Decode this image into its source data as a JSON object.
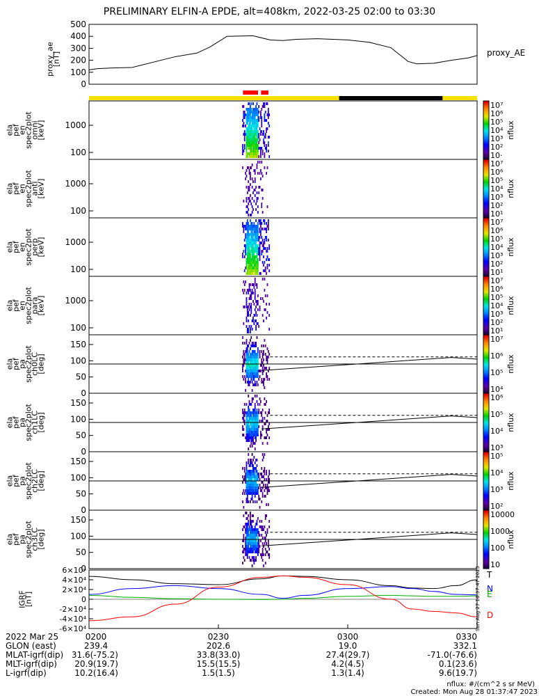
{
  "title": "PRELIMINARY ELFIN-A EPDE, alt=408km, 2022-03-25 02:00 to 03:30",
  "chart_data": [
    {
      "type": "line",
      "name": "proxy_ae",
      "ylabel_lines": [
        "proxy_ae",
        "[nT]"
      ],
      "legend": "proxy_AE",
      "ylim": [
        0,
        500
      ],
      "yticks": [
        "0",
        "100",
        "200",
        "300",
        "400",
        "500"
      ],
      "x_minutes": [
        0,
        2,
        5,
        10,
        20,
        25,
        28,
        32,
        38,
        42,
        45,
        48,
        53,
        60,
        65,
        70,
        74,
        76,
        80,
        84,
        88,
        90
      ],
      "values": [
        120,
        130,
        135,
        140,
        230,
        260,
        310,
        400,
        405,
        370,
        365,
        375,
        380,
        370,
        350,
        305,
        190,
        170,
        175,
        200,
        220,
        240
      ]
    },
    {
      "type": "bar",
      "name": "data-quality-bar",
      "segments": [
        {
          "from_min": 0,
          "to_min": 58,
          "color": "#f5e000"
        },
        {
          "from_min": 58,
          "to_min": 82,
          "color": "#000000"
        },
        {
          "from_min": 82,
          "to_min": 90,
          "color": "#f5e000"
        }
      ],
      "markers": [
        {
          "from_min": 35.7,
          "to_min": 39.2,
          "color": "#ff0000"
        },
        {
          "from_min": 39.9,
          "to_min": 41.6,
          "color": "#ff0000"
        }
      ]
    },
    {
      "type": "heatmap",
      "name": "spec2plot-omni",
      "ylabel_lines": [
        "ela",
        "pef",
        "en",
        "spec2plot",
        "omni",
        "[keV]"
      ],
      "scale": "log",
      "yticks": [
        "100",
        "1000"
      ],
      "colorbar_label": "nflux",
      "colorbar_ticks": [
        "10·",
        "10²",
        "10³",
        "10⁴",
        "10⁵",
        "10⁶",
        "10⁷"
      ]
    },
    {
      "type": "heatmap",
      "name": "spec2plot-anti",
      "ylabel_lines": [
        "ela",
        "pef",
        "en",
        "spec2plot",
        "anti",
        "[keV]"
      ],
      "scale": "log",
      "yticks": [
        "100",
        "1000"
      ],
      "colorbar_label": "nflux",
      "colorbar_ticks": [
        "10¹",
        "10²",
        "10³",
        "10⁴",
        "10⁵",
        "10⁶",
        "10⁷"
      ]
    },
    {
      "type": "heatmap",
      "name": "spec2plot-perp",
      "ylabel_lines": [
        "ela",
        "pef",
        "en",
        "spec2plot",
        "perp",
        "[keV]"
      ],
      "scale": "log",
      "yticks": [
        "100",
        "1000"
      ],
      "colorbar_label": "nflux",
      "colorbar_ticks": [
        "10¹",
        "10²",
        "10³",
        "10⁴",
        "10⁵",
        "10⁶",
        "10⁷"
      ]
    },
    {
      "type": "heatmap",
      "name": "spec2plot-para",
      "ylabel_lines": [
        "ela",
        "pef",
        "en",
        "spec2plot",
        "para",
        "[keV]"
      ],
      "scale": "log",
      "yticks": [
        "100",
        "1000"
      ],
      "colorbar_label": "nflux",
      "colorbar_ticks": [
        "10¹",
        "10²",
        "10³",
        "10⁴",
        "10⁵",
        "10⁶",
        "10⁷"
      ]
    },
    {
      "type": "heatmap",
      "name": "spec2plot-ch0LC",
      "ylabel_lines": [
        "ela",
        "pef",
        "pa",
        "spec2plot",
        "ch0LC",
        "[deg]"
      ],
      "ylim": [
        0,
        180
      ],
      "yticks": [
        "0",
        "50",
        "100",
        "150"
      ],
      "colorbar_label": "nflux",
      "colorbar_ticks": [
        "10⁴",
        "10⁵",
        "10⁶",
        "10⁷"
      ]
    },
    {
      "type": "heatmap",
      "name": "spec2plot-ch1LC",
      "ylabel_lines": [
        "ela",
        "pef",
        "pa",
        "spec2plot",
        "ch1LC",
        "[deg]"
      ],
      "ylim": [
        0,
        180
      ],
      "yticks": [
        "0",
        "50",
        "100",
        "150"
      ],
      "colorbar_label": "nflux",
      "colorbar_ticks": [
        "10³",
        "10⁴",
        "10⁵",
        "10⁶"
      ]
    },
    {
      "type": "heatmap",
      "name": "spec2plot-ch2LC",
      "ylabel_lines": [
        "ela",
        "pef",
        "pa",
        "spec2plot",
        "ch2LC",
        "[deg]"
      ],
      "ylim": [
        0,
        180
      ],
      "yticks": [
        "0",
        "50",
        "100",
        "150"
      ],
      "colorbar_label": "nflux",
      "colorbar_ticks": [
        "10²",
        "10³",
        "10⁴",
        "10⁵"
      ]
    },
    {
      "type": "heatmap",
      "name": "spec2plot-ch3LC",
      "ylabel_lines": [
        "ela",
        "pef",
        "pa",
        "spec2plot",
        "ch3LC",
        "[deg]"
      ],
      "ylim": [
        0,
        180
      ],
      "yticks": [
        "0",
        "50",
        "100",
        "150"
      ],
      "colorbar_label": "nflux",
      "colorbar_ticks": [
        "10",
        "100",
        "1000",
        "10000"
      ]
    },
    {
      "type": "line",
      "name": "igrf",
      "ylabel_lines": [
        "IGRF",
        "[nT]"
      ],
      "ylim": [
        -60000,
        60000
      ],
      "yticks": [
        "-6×10⁴",
        "-4×10⁴",
        "-2×10⁴",
        "0",
        "2×10⁴",
        "4×10⁴",
        "6×10⁴"
      ],
      "legend": [
        {
          "name": "T",
          "color": "#000000"
        },
        {
          "name": "N",
          "color": "#0000ff"
        },
        {
          "name": "E",
          "color": "#00b000"
        },
        {
          "name": "D",
          "color": "#ff0000"
        }
      ],
      "x_minutes": [
        0,
        10,
        20,
        30,
        40,
        45,
        50,
        60,
        70,
        75,
        80,
        85,
        90
      ],
      "series": [
        {
          "name": "T",
          "values": [
            47000,
            40000,
            32000,
            30000,
            42000,
            48000,
            47000,
            40000,
            28000,
            23000,
            22000,
            28000,
            40000
          ]
        },
        {
          "name": "N",
          "values": [
            10000,
            22000,
            28000,
            22000,
            10000,
            2000,
            8000,
            22000,
            26000,
            22000,
            16000,
            10000,
            9000
          ]
        },
        {
          "name": "E",
          "values": [
            8000,
            4000,
            1000,
            0,
            -500,
            0,
            2000,
            6000,
            8000,
            7000,
            6000,
            6000,
            7000
          ]
        },
        {
          "name": "D",
          "values": [
            -44000,
            -36000,
            -10000,
            25000,
            45000,
            48000,
            45000,
            30000,
            0,
            -20000,
            -25000,
            -28000,
            -36000
          ]
        }
      ]
    }
  ],
  "x_axis": {
    "ticks": [
      "0200",
      "0230",
      "0300",
      "0330"
    ],
    "tick_minutes": [
      0,
      30,
      60,
      90
    ]
  },
  "footer": {
    "labels": [
      "2022 Mar 25",
      "GLON (east)",
      "MLAT-igrf(dip)",
      "MLT-igrf(dip)",
      "L-igrf(dip)"
    ],
    "columns": [
      [
        "0200",
        "239.4",
        "31.6(-75.2)",
        "20.9(19.7)",
        "10.2(16.4)"
      ],
      [
        "0230",
        "202.6",
        "33.8(33.0)",
        "15.5(15.5)",
        "1.5(1.5)"
      ],
      [
        "0300",
        "19.0",
        "27.4(29.7)",
        "4.2(4.5)",
        "1.3(1.4)"
      ],
      [
        "0330",
        "332.1",
        "-71.0(-76.6)",
        "0.1(23.6)",
        "9.6(19.7)"
      ]
    ],
    "units": "nflux: #/(cm^2 s sr MeV)",
    "created": "Created: Mon Aug 28 01:37:47 2023",
    "side_stamp": "Sun Aug 27 18:37:47 2023"
  }
}
